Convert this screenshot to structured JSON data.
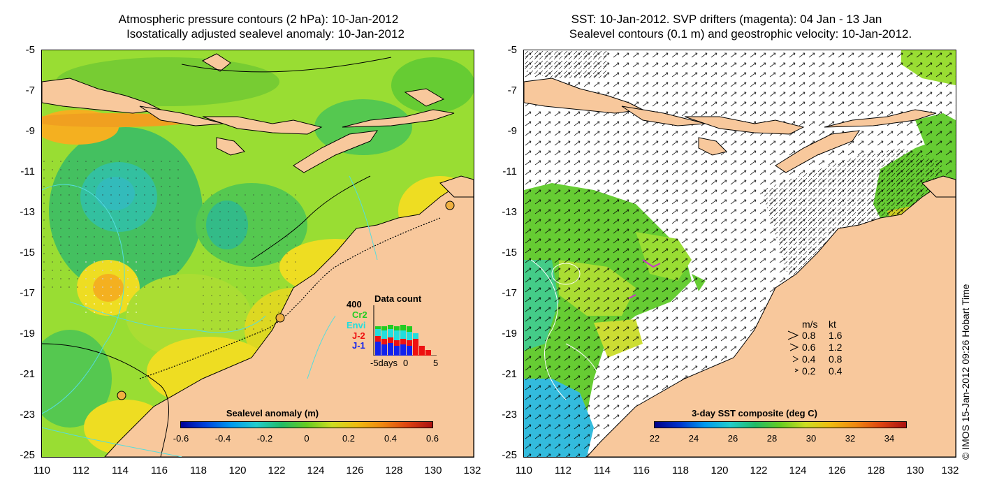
{
  "left_panel": {
    "title_line1": "Atmospheric pressure contours (2 hPa): 10-Jan-2012",
    "title_line2": "Isostatically adjusted sealevel anomaly: 10-Jan-2012",
    "colorbar": {
      "title": "Sealevel anomaly (m)",
      "ticks": [
        "-0.6",
        "-0.4",
        "-0.2",
        "0",
        "0.2",
        "0.4",
        "0.6"
      ]
    },
    "data_count": {
      "title": "Data count",
      "max_label": "400",
      "sats": [
        {
          "name": "Cr2",
          "color": "#22cc22"
        },
        {
          "name": "Envi",
          "color": "#22dddd"
        },
        {
          "name": "J-2",
          "color": "#ee1111"
        },
        {
          "name": "J-1",
          "color": "#1122ee"
        }
      ],
      "xlabel_left": "-5days",
      "xlabel_mid": "0",
      "xlabel_right": "5"
    }
  },
  "right_panel": {
    "title_line1": "SST: 10-Jan-2012. SVP drifters (magenta): 04 Jan - 13 Jan",
    "title_line2": "Sealevel contours (0.1 m) and geostrophic velocity: 10-Jan-2012.",
    "colorbar": {
      "title": "3-day SST composite (deg C)",
      "ticks": [
        "22",
        "24",
        "26",
        "28",
        "30",
        "32",
        "34"
      ]
    },
    "speed_legend": {
      "header_ms": "m/s",
      "header_kt": "kt",
      "rows": [
        {
          "ms": "0.8",
          "kt": "1.6"
        },
        {
          "ms": "0.6",
          "kt": "1.2"
        },
        {
          "ms": "0.4",
          "kt": "0.8"
        },
        {
          "ms": "0.2",
          "kt": "0.4"
        }
      ]
    }
  },
  "axes": {
    "y_ticks": [
      "-5",
      "-7",
      "-9",
      "-11",
      "-13",
      "-15",
      "-17",
      "-19",
      "-21",
      "-23",
      "-25"
    ],
    "x_ticks": [
      "110",
      "112",
      "114",
      "116",
      "118",
      "120",
      "122",
      "124",
      "126",
      "128",
      "130",
      "132"
    ]
  },
  "credit": "© IMOS 15-Jan-2012 09:26 Hobart Time",
  "colors": {
    "land": "#f8c89c",
    "ocean_green": "#66cc22",
    "ocean_yellow": "#ddee22",
    "ocean_cyan": "#22ccbb",
    "contour_cyan": "#55dddd",
    "sst_missing": "#ffffff"
  }
}
